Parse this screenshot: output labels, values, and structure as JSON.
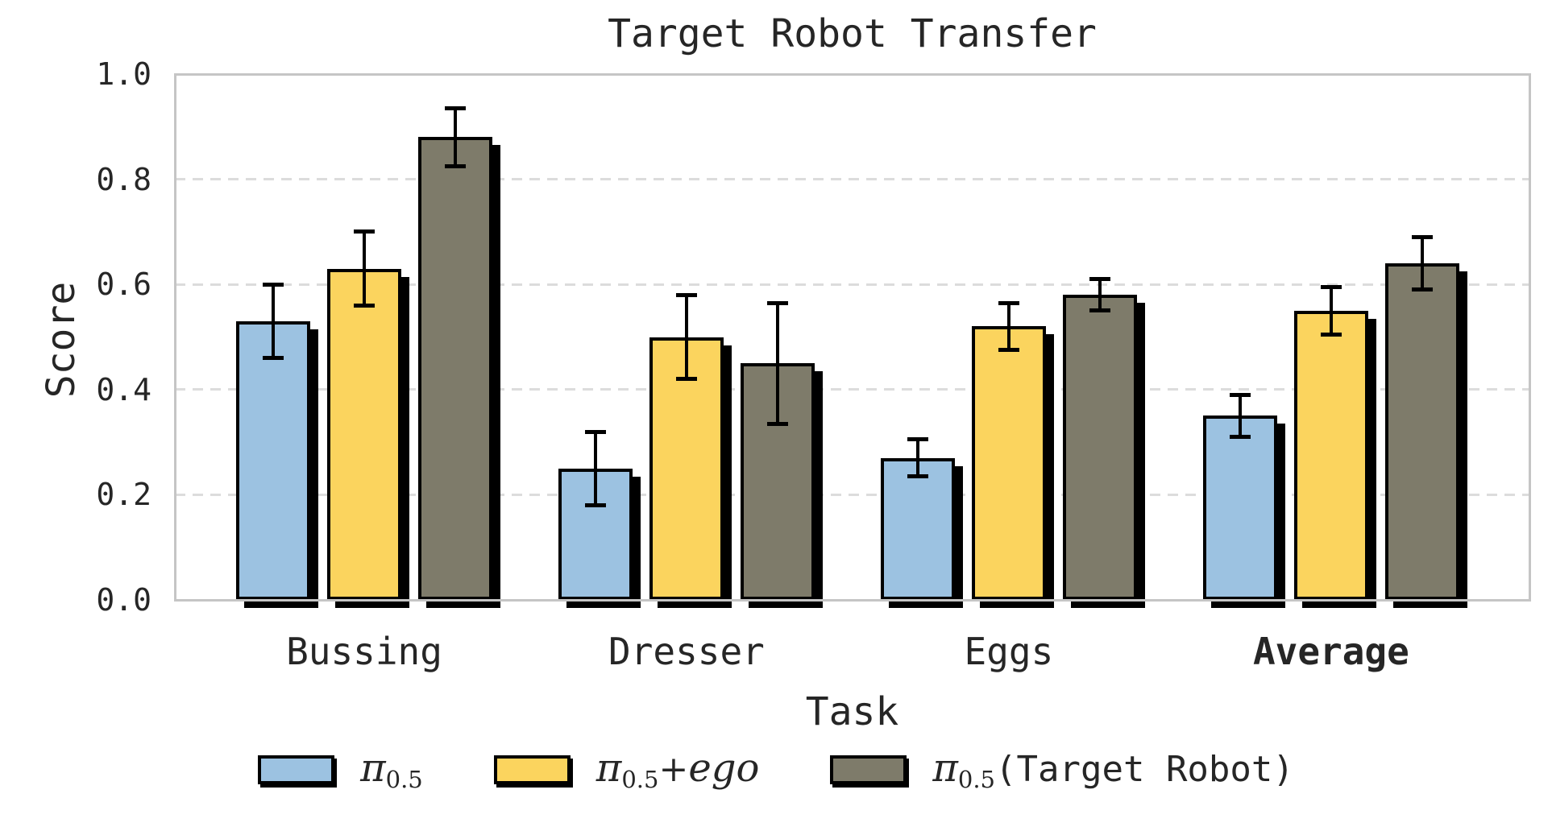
{
  "chart_data": {
    "type": "bar",
    "title": "Target Robot Transfer",
    "xlabel": "Task",
    "ylabel": "Score",
    "ylim": [
      0.0,
      1.0
    ],
    "yticks": [
      0.0,
      0.2,
      0.4,
      0.6,
      0.8,
      1.0
    ],
    "ytick_labels": [
      "0.0",
      "0.2",
      "0.4",
      "0.6",
      "0.8",
      "1.0"
    ],
    "grid": "horizontal-dashed",
    "legend_position": "bottom-center",
    "categories": [
      {
        "label": "Bussing",
        "bold": false
      },
      {
        "label": "Dresser",
        "bold": false
      },
      {
        "label": "Eggs",
        "bold": false
      },
      {
        "label": "Average",
        "bold": true
      }
    ],
    "series": [
      {
        "name": "pi-0.5",
        "color": "#9cc2e1",
        "values": [
          0.53,
          0.25,
          0.27,
          0.35
        ],
        "errors": [
          0.07,
          0.07,
          0.035,
          0.04
        ],
        "label_segments": [
          {
            "text": "π",
            "style": "italic-serif"
          },
          {
            "text": "0.5",
            "style": "subscript"
          }
        ]
      },
      {
        "name": "pi-0.5-plus-ego",
        "color": "#fbd45e",
        "values": [
          0.63,
          0.5,
          0.52,
          0.55
        ],
        "errors": [
          0.07,
          0.08,
          0.045,
          0.045
        ],
        "label_segments": [
          {
            "text": "π",
            "style": "italic-serif"
          },
          {
            "text": "0.5",
            "style": "subscript"
          },
          {
            "text": "+",
            "style": "plain-serif"
          },
          {
            "text": "ego",
            "style": "italic-serif"
          }
        ]
      },
      {
        "name": "pi-0.5-target-robot",
        "color": "#7e7b6a",
        "values": [
          0.88,
          0.45,
          0.58,
          0.64
        ],
        "errors": [
          0.055,
          0.115,
          0.03,
          0.05
        ],
        "label_segments": [
          {
            "text": "π",
            "style": "italic-serif"
          },
          {
            "text": "0.5",
            "style": "subscript"
          },
          {
            "text": "(Target Robot)",
            "style": "mono"
          }
        ]
      }
    ],
    "colors": {
      "bar_edge": "#000000",
      "bar_shadow": "#000000",
      "grid": "#dcdcdc",
      "spine": "#c5c5c5",
      "text": "#262626",
      "background": "#ffffff"
    }
  }
}
